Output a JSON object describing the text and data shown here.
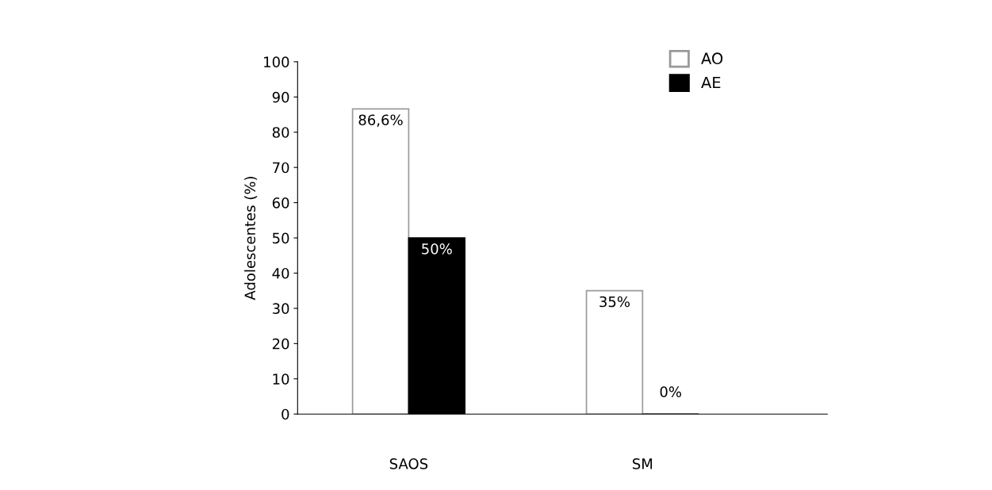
{
  "chart_data": {
    "type": "bar",
    "ylabel": "Adolescentes (%)",
    "categories": [
      "SAOS",
      "SM"
    ],
    "series": [
      {
        "name": "AO",
        "color": "#ffffff",
        "values": [
          86.6,
          35
        ],
        "value_labels": [
          "86,6%",
          "35%"
        ]
      },
      {
        "name": "AE",
        "color": "#000000",
        "values": [
          50,
          0
        ],
        "value_labels": [
          "50%",
          "0%"
        ]
      }
    ],
    "ylim": [
      0,
      100
    ],
    "yticks": [
      0,
      10,
      20,
      30,
      40,
      50,
      60,
      70,
      80,
      90,
      100
    ],
    "grid": false,
    "legend": "top right"
  }
}
